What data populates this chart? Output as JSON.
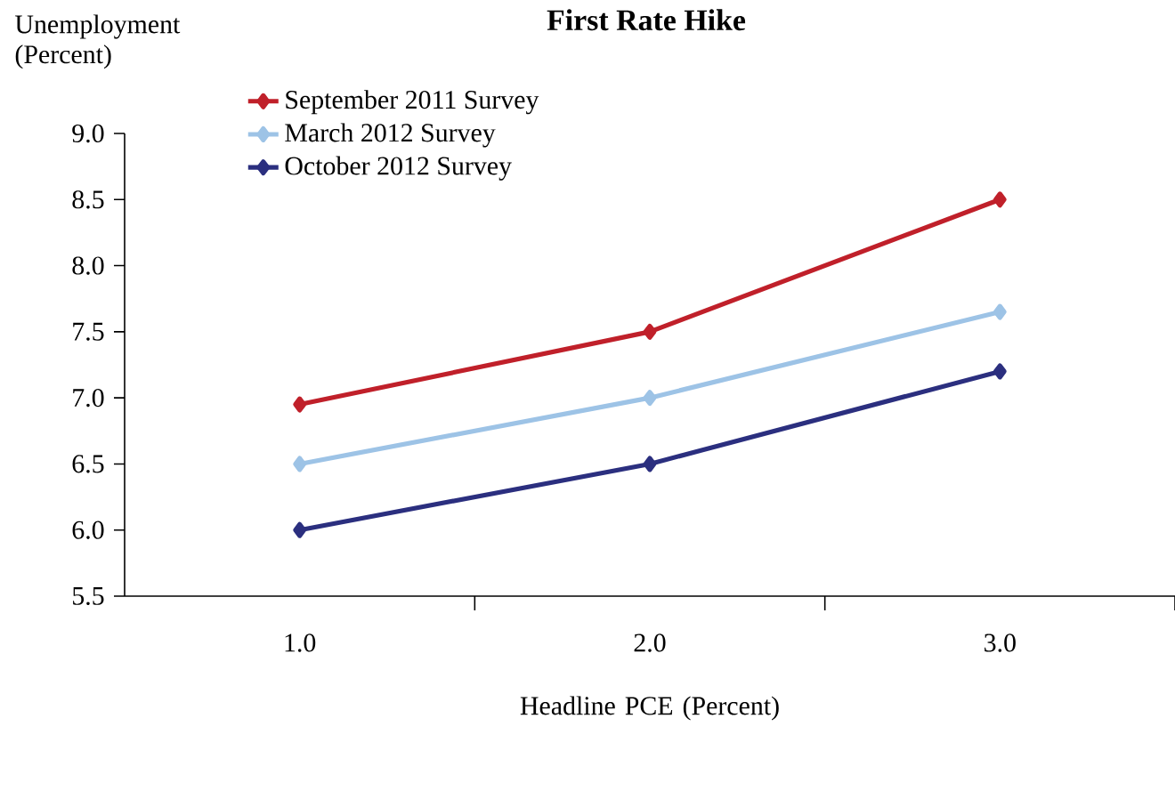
{
  "chart_data": {
    "type": "line",
    "title": "First Rate Hike",
    "ylabel": "Unemployment (Percent)",
    "xlabel": "Headline PCE (Percent)",
    "x": [
      1,
      2,
      3
    ],
    "series": [
      {
        "name": "September 2011 Survey",
        "color": "#c0202a",
        "values": [
          6.95,
          7.5,
          8.5
        ]
      },
      {
        "name": "March 2012 Survey",
        "color": "#9dc3e6",
        "values": [
          6.5,
          7.0,
          7.65
        ]
      },
      {
        "name": "October 2012 Survey",
        "color": "#2b2f7f",
        "values": [
          6.0,
          6.5,
          7.2
        ]
      }
    ],
    "xlim": [
      0.5,
      3.5
    ],
    "xticks": [
      {
        "value": 1,
        "label": "1.0"
      },
      {
        "value": 1.5,
        "label": null
      },
      {
        "value": 2,
        "label": "2.0"
      },
      {
        "value": 2.5,
        "label": null
      },
      {
        "value": 3,
        "label": "3.0"
      },
      {
        "value": 3.5,
        "label": null
      }
    ],
    "ylim": [
      5.5,
      9.0
    ],
    "yticks": [
      {
        "value": 5.5,
        "label": "5.5"
      },
      {
        "value": 6.0,
        "label": "6.0"
      },
      {
        "value": 6.5,
        "label": "6.5"
      },
      {
        "value": 7.0,
        "label": "7.0"
      },
      {
        "value": 7.5,
        "label": "7.5"
      },
      {
        "value": 8.0,
        "label": "8.0"
      },
      {
        "value": 8.5,
        "label": "8.5"
      },
      {
        "value": 9.0,
        "label": "9.0"
      }
    ],
    "marker": "diamond",
    "line_style": "solid",
    "grid": false,
    "legend": "top left"
  }
}
